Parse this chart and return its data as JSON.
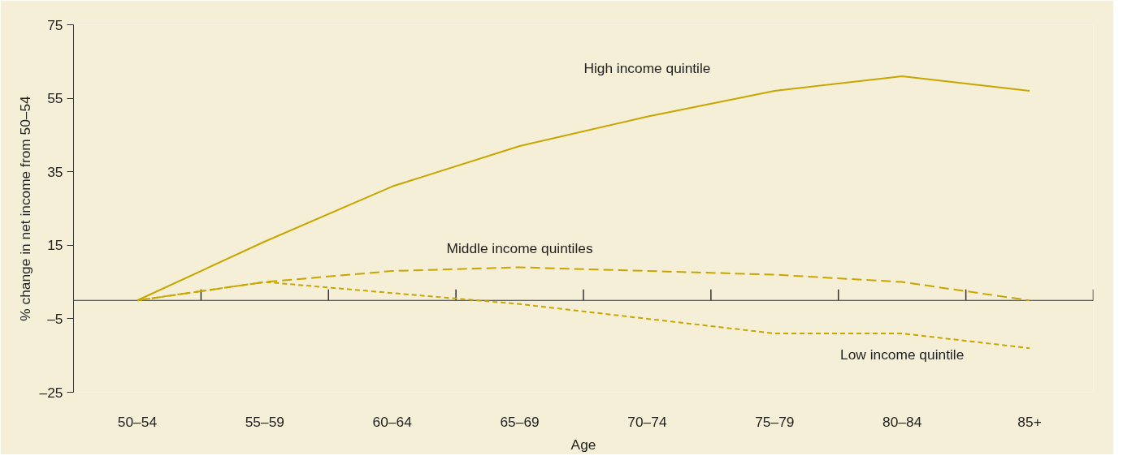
{
  "chart_data": {
    "type": "line",
    "xlabel": "Age",
    "ylabel": "% change in net income from 50–54",
    "categories": [
      "50–54",
      "55–59",
      "60–64",
      "65–69",
      "70–74",
      "75–79",
      "80–84",
      "85+"
    ],
    "ylim": [
      -25,
      75
    ],
    "yticks": [
      {
        "value": -25,
        "label": "–25"
      },
      {
        "value": -5,
        "label": "–5"
      },
      15,
      35,
      55,
      75
    ],
    "grid": false,
    "legend": false,
    "marker": "none",
    "series": [
      {
        "name": "High income quintile",
        "color": "#c8a600",
        "line_style": "solid",
        "values": [
          0,
          16,
          31,
          42,
          50,
          57,
          61,
          57
        ]
      },
      {
        "name": "Middle income quintiles",
        "color": "#c8a600",
        "line_style": "dashed",
        "values": [
          0,
          5,
          8,
          9,
          8,
          7,
          5,
          0
        ]
      },
      {
        "name": "Low income quintile",
        "color": "#c8a600",
        "line_style": "dotted",
        "values": [
          0,
          5,
          2,
          -1,
          -5,
          -9,
          -9,
          -13
        ]
      }
    ]
  }
}
